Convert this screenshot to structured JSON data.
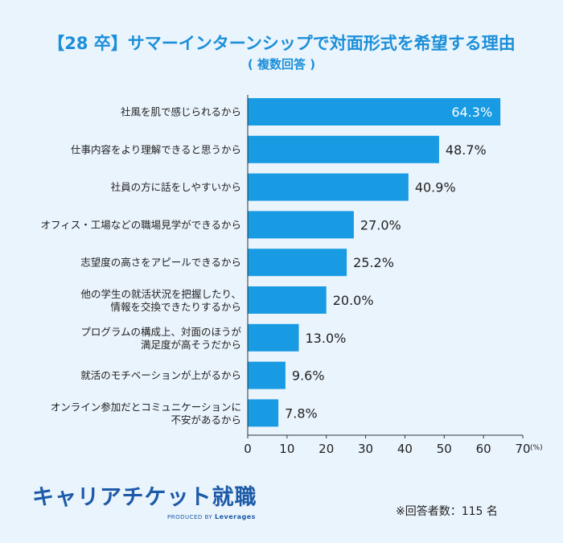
{
  "header": {
    "title": "【28 卒】サマーインターンシップで対面形式を希望する理由",
    "subtitle": "( 複数回答 )"
  },
  "footer": {
    "logo_text": "キャリアチケット就職",
    "logo_sub_prefix": "PRODUCED BY",
    "logo_sub_brand": "Leverages",
    "respondents": "※回答者数：115 名"
  },
  "colors": {
    "bar": "#189be2",
    "background": "#eaf4fc",
    "title": "#1c8fd9"
  },
  "chart_data": {
    "type": "bar",
    "orientation": "horizontal",
    "title": "【28 卒】サマーインターンシップで対面形式を希望する理由",
    "subtitle": "( 複数回答 )",
    "xlabel": "",
    "ylabel": "",
    "x_unit": "(%)",
    "xlim": [
      0,
      70
    ],
    "x_ticks": [
      0,
      10,
      20,
      30,
      40,
      50,
      60,
      70
    ],
    "grid": false,
    "categories": [
      [
        "社風を肌で感じられるから"
      ],
      [
        "仕事内容をより理解できると思うから"
      ],
      [
        "社員の方に話をしやすいから"
      ],
      [
        "オフィス・工場などの職場見学ができるから"
      ],
      [
        "志望度の高さをアピールできるから"
      ],
      [
        "他の学生の就活状況を把握したり、",
        "情報を交換できたりするから"
      ],
      [
        "プログラムの構成上、対面のほうが",
        "満足度が高そうだから"
      ],
      [
        "就活のモチベーションが上がるから"
      ],
      [
        "オンライン参加だとコミュニケーションに",
        "不安があるから"
      ]
    ],
    "values": [
      64.3,
      48.7,
      40.9,
      27.0,
      25.2,
      20.0,
      13.0,
      9.6,
      7.8
    ],
    "value_labels": [
      "64.3%",
      "48.7%",
      "40.9%",
      "27.0%",
      "25.2%",
      "20.0%",
      "13.0%",
      "9.6%",
      "7.8%"
    ]
  }
}
